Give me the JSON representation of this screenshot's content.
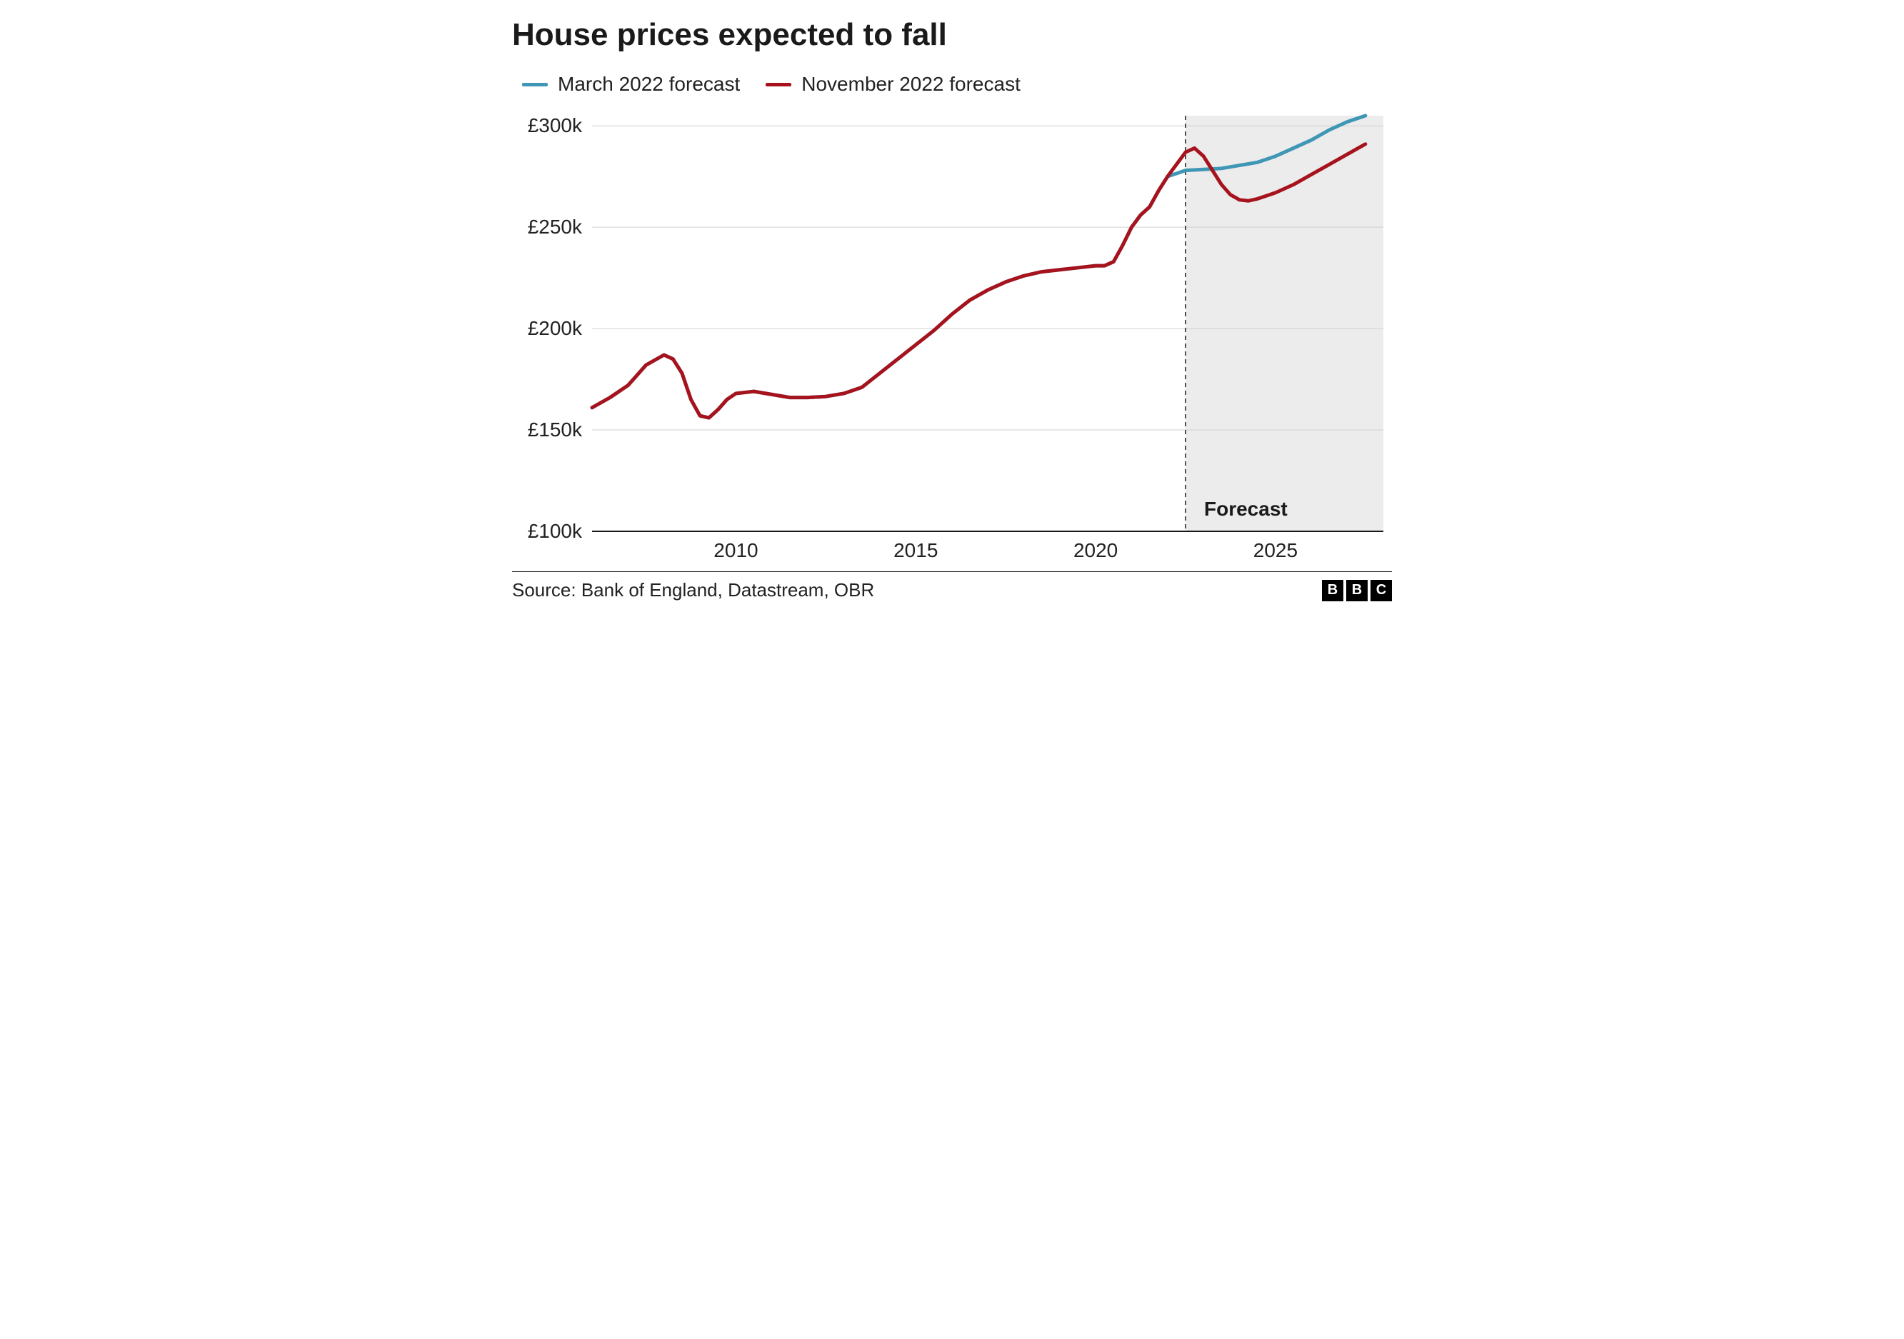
{
  "title": "House prices expected to fall",
  "legend": {
    "items": [
      {
        "label": "March 2022 forecast",
        "color": "#3f97b5"
      },
      {
        "label": "November 2022 forecast",
        "color": "#a6131d"
      }
    ]
  },
  "chart": {
    "type": "line",
    "background_color": "#ffffff",
    "grid_color": "#d0d0d0",
    "axis_color": "#1a1a1a",
    "line_width": 5,
    "xlim": [
      2006,
      2028
    ],
    "ylim": [
      100,
      305
    ],
    "x_ticks": [
      2010,
      2015,
      2020,
      2025
    ],
    "y_ticks": [
      {
        "value": 100,
        "label": "£100k"
      },
      {
        "value": 150,
        "label": "£150k"
      },
      {
        "value": 200,
        "label": "£200k"
      },
      {
        "value": 250,
        "label": "£250k"
      },
      {
        "value": 300,
        "label": "£300k"
      }
    ],
    "y_label_fontsize": 28,
    "x_label_fontsize": 28,
    "forecast_region": {
      "start_x": 2022.5,
      "fill": "#ececec",
      "label": "Forecast",
      "label_fontsize": 28,
      "label_fontweight": 700,
      "divider_dash": "6 5"
    },
    "series": [
      {
        "name": "march_2022",
        "color": "#3f97b5",
        "data": [
          [
            2006.0,
            161
          ],
          [
            2006.5,
            166
          ],
          [
            2007.0,
            172
          ],
          [
            2007.5,
            182
          ],
          [
            2008.0,
            187
          ],
          [
            2008.25,
            185
          ],
          [
            2008.5,
            178
          ],
          [
            2008.75,
            165
          ],
          [
            2009.0,
            157
          ],
          [
            2009.25,
            156
          ],
          [
            2009.5,
            160
          ],
          [
            2009.75,
            165
          ],
          [
            2010.0,
            168
          ],
          [
            2010.5,
            169
          ],
          [
            2011.0,
            167.5
          ],
          [
            2011.5,
            166
          ],
          [
            2012.0,
            166
          ],
          [
            2012.5,
            166.5
          ],
          [
            2013.0,
            168
          ],
          [
            2013.5,
            171
          ],
          [
            2014.0,
            178
          ],
          [
            2014.5,
            185
          ],
          [
            2015.0,
            192
          ],
          [
            2015.5,
            199
          ],
          [
            2016.0,
            207
          ],
          [
            2016.5,
            214
          ],
          [
            2017.0,
            219
          ],
          [
            2017.5,
            223
          ],
          [
            2018.0,
            226
          ],
          [
            2018.5,
            228
          ],
          [
            2019.0,
            229
          ],
          [
            2019.5,
            230
          ],
          [
            2020.0,
            231
          ],
          [
            2020.25,
            231
          ],
          [
            2020.5,
            233
          ],
          [
            2020.75,
            241
          ],
          [
            2021.0,
            250
          ],
          [
            2021.25,
            256
          ],
          [
            2021.5,
            260
          ],
          [
            2021.75,
            268
          ],
          [
            2022.0,
            275
          ],
          [
            2022.5,
            278
          ],
          [
            2023.0,
            278.5
          ],
          [
            2023.5,
            279
          ],
          [
            2024.0,
            280.5
          ],
          [
            2024.5,
            282
          ],
          [
            2025.0,
            285
          ],
          [
            2025.5,
            289
          ],
          [
            2026.0,
            293
          ],
          [
            2026.5,
            298
          ],
          [
            2027.0,
            302
          ],
          [
            2027.5,
            305
          ]
        ]
      },
      {
        "name": "november_2022",
        "color": "#a6131d",
        "data": [
          [
            2006.0,
            161
          ],
          [
            2006.5,
            166
          ],
          [
            2007.0,
            172
          ],
          [
            2007.5,
            182
          ],
          [
            2008.0,
            187
          ],
          [
            2008.25,
            185
          ],
          [
            2008.5,
            178
          ],
          [
            2008.75,
            165
          ],
          [
            2009.0,
            157
          ],
          [
            2009.25,
            156
          ],
          [
            2009.5,
            160
          ],
          [
            2009.75,
            165
          ],
          [
            2010.0,
            168
          ],
          [
            2010.5,
            169
          ],
          [
            2011.0,
            167.5
          ],
          [
            2011.5,
            166
          ],
          [
            2012.0,
            166
          ],
          [
            2012.5,
            166.5
          ],
          [
            2013.0,
            168
          ],
          [
            2013.5,
            171
          ],
          [
            2014.0,
            178
          ],
          [
            2014.5,
            185
          ],
          [
            2015.0,
            192
          ],
          [
            2015.5,
            199
          ],
          [
            2016.0,
            207
          ],
          [
            2016.5,
            214
          ],
          [
            2017.0,
            219
          ],
          [
            2017.5,
            223
          ],
          [
            2018.0,
            226
          ],
          [
            2018.5,
            228
          ],
          [
            2019.0,
            229
          ],
          [
            2019.5,
            230
          ],
          [
            2020.0,
            231
          ],
          [
            2020.25,
            231
          ],
          [
            2020.5,
            233
          ],
          [
            2020.75,
            241
          ],
          [
            2021.0,
            250
          ],
          [
            2021.25,
            256
          ],
          [
            2021.5,
            260
          ],
          [
            2021.75,
            268
          ],
          [
            2022.0,
            275
          ],
          [
            2022.25,
            281
          ],
          [
            2022.5,
            287
          ],
          [
            2022.75,
            289
          ],
          [
            2023.0,
            285
          ],
          [
            2023.25,
            278
          ],
          [
            2023.5,
            271
          ],
          [
            2023.75,
            266
          ],
          [
            2024.0,
            263.5
          ],
          [
            2024.25,
            263
          ],
          [
            2024.5,
            264
          ],
          [
            2025.0,
            267
          ],
          [
            2025.5,
            271
          ],
          [
            2026.0,
            276
          ],
          [
            2026.5,
            281
          ],
          [
            2027.0,
            286
          ],
          [
            2027.5,
            291
          ]
        ]
      }
    ]
  },
  "source_text": "Source: Bank of England, Datastream, OBR",
  "logo": {
    "letters": [
      "B",
      "B",
      "C"
    ]
  }
}
